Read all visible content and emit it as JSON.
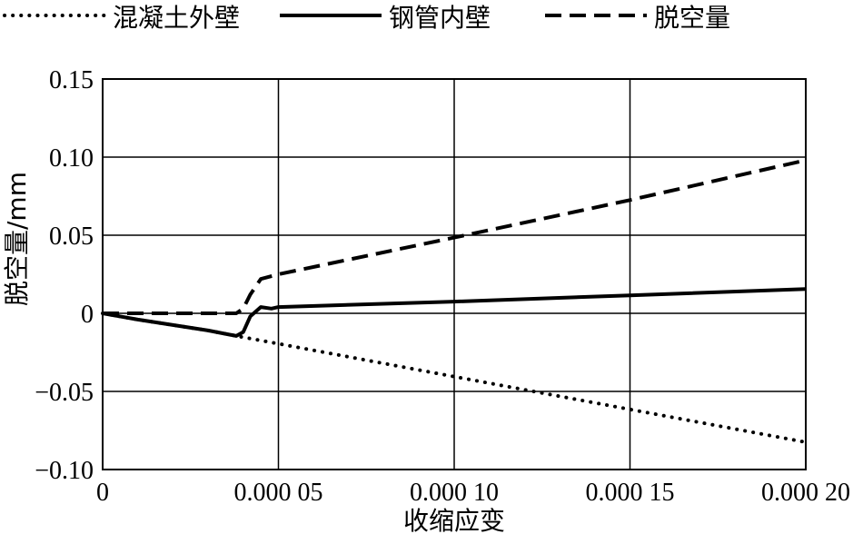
{
  "chart_data": {
    "type": "line",
    "title": "",
    "xlabel": "收缩应变",
    "ylabel": "脱空量/mm",
    "xlim": [
      0,
      0.0002
    ],
    "ylim": [
      -0.1,
      0.15
    ],
    "x_ticks": [
      {
        "value": 0,
        "label": "0"
      },
      {
        "value": 5e-05,
        "label": "0.000 05"
      },
      {
        "value": 0.0001,
        "label": "0.000 10"
      },
      {
        "value": 0.00015,
        "label": "0.000 15"
      },
      {
        "value": 0.0002,
        "label": "0.000 20"
      }
    ],
    "y_ticks": [
      {
        "value": 0.15,
        "label": "0.15"
      },
      {
        "value": 0.1,
        "label": "0.10"
      },
      {
        "value": 0.05,
        "label": "0.05"
      },
      {
        "value": 0,
        "label": "0"
      },
      {
        "value": -0.05,
        "label": "−0.05"
      },
      {
        "value": -0.1,
        "label": "−0.10"
      }
    ],
    "grid": true,
    "legend_position": "top",
    "series": [
      {
        "name": "混凝土外壁",
        "style": "dotted",
        "color": "#000000",
        "x": [
          0,
          1e-05,
          2e-05,
          3e-05,
          3.8e-05,
          5e-05,
          0.0001,
          0.00015,
          0.0002
        ],
        "y": [
          0,
          -0.004,
          -0.0075,
          -0.011,
          -0.0145,
          -0.0195,
          -0.0405,
          -0.0615,
          -0.0825
        ]
      },
      {
        "name": "钢管内壁",
        "style": "solid",
        "color": "#000000",
        "x": [
          0,
          1e-05,
          2e-05,
          3e-05,
          3.8e-05,
          4e-05,
          4.2e-05,
          4.5e-05,
          4.8e-05,
          5e-05,
          0.0001,
          0.00015,
          0.0002
        ],
        "y": [
          0,
          -0.004,
          -0.0075,
          -0.011,
          -0.0145,
          -0.012,
          -0.002,
          0.004,
          0.003,
          0.004,
          0.0075,
          0.0115,
          0.0155
        ]
      },
      {
        "name": "脱空量",
        "style": "dashed",
        "color": "#000000",
        "x": [
          0,
          2e-05,
          3.8e-05,
          4e-05,
          4.2e-05,
          4.5e-05,
          5e-05,
          0.0001,
          0.00015,
          0.0002
        ],
        "y": [
          0,
          0,
          0,
          0.003,
          0.012,
          0.022,
          0.025,
          0.0485,
          0.0725,
          0.098
        ]
      }
    ]
  }
}
